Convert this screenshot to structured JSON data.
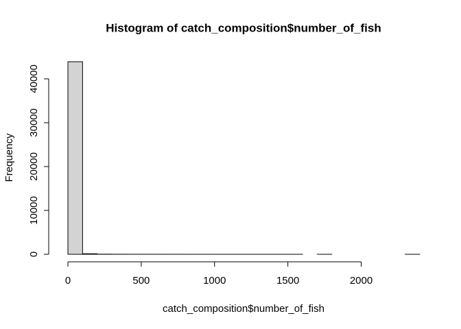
{
  "chart_data": {
    "type": "histogram",
    "title": "Histogram of catch_composition$number_of_fish",
    "x_label": "catch_composition$number_of_fish",
    "y_label": "Frequency",
    "bins": [
      0,
      100,
      200,
      300,
      400,
      500,
      600,
      700,
      800,
      900,
      1000,
      1100,
      1200,
      1300,
      1400,
      1500,
      1600,
      1700,
      1800,
      1900,
      2000,
      2100,
      2200,
      2300,
      2400
    ],
    "values": [
      43900,
      120,
      30,
      15,
      10,
      8,
      5,
      4,
      3,
      3,
      2,
      2,
      1,
      1,
      1,
      1,
      0,
      1,
      0,
      0,
      0,
      0,
      0,
      1
    ],
    "color": "#d3d3d3",
    "xlim": [
      0,
      2400
    ],
    "xticks": [
      0,
      500,
      1000,
      1500,
      2000
    ],
    "ylim": [
      0,
      45000
    ],
    "yticks": [
      0,
      10000,
      20000,
      30000,
      40000
    ]
  }
}
